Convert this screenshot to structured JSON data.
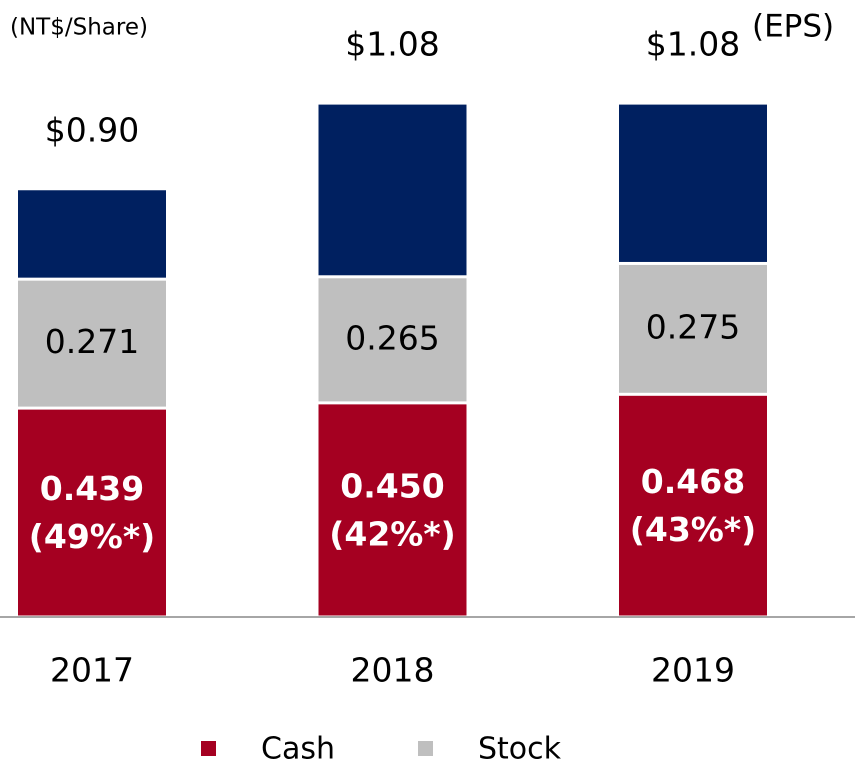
{
  "chart_data": {
    "type": "stacked_bar",
    "unit_label": "(NT$/Share)",
    "total_annotation": "(EPS)",
    "categories": [
      "2017",
      "2018",
      "2019"
    ],
    "series": [
      {
        "name": "Cash",
        "color": "#a50021",
        "values": [
          0.439,
          0.45,
          0.468
        ],
        "value_labels": [
          "0.439",
          "0.450",
          "0.468"
        ],
        "payout_labels": [
          "(49%*)",
          "(42%*)",
          "(43%*)"
        ]
      },
      {
        "name": "Stock",
        "color": "#bfbfbf",
        "values": [
          0.271,
          0.265,
          0.275
        ]
      },
      {
        "color": "#002060",
        "values": [
          0.19,
          0.365,
          0.337
        ]
      }
    ],
    "totals": [
      0.9,
      1.08,
      1.08
    ],
    "total_labels": [
      "$0.90",
      "$1.08",
      "$1.08"
    ],
    "ylim": [
      0,
      1.2
    ]
  }
}
